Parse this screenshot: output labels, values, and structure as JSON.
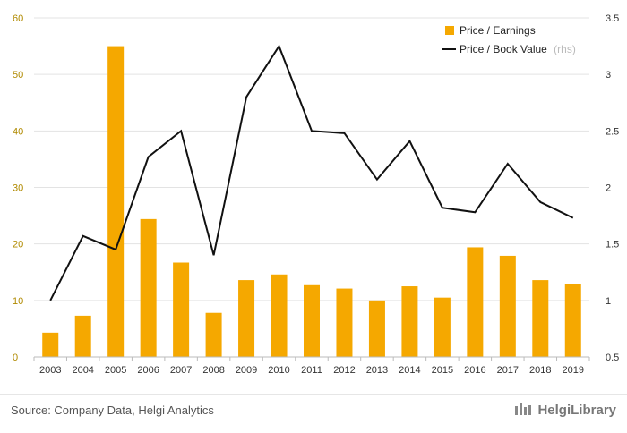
{
  "chart_data": {
    "type": "bar+line",
    "categories": [
      "2003",
      "2004",
      "2005",
      "2006",
      "2007",
      "2008",
      "2009",
      "2010",
      "2011",
      "2012",
      "2013",
      "2014",
      "2015",
      "2016",
      "2017",
      "2018",
      "2019"
    ],
    "series": [
      {
        "name": "Price / Earnings",
        "type": "bar",
        "axis": "left",
        "color": "#f5a800",
        "values": [
          4.3,
          7.3,
          55.0,
          24.4,
          16.7,
          7.8,
          13.6,
          14.6,
          12.7,
          12.1,
          10.0,
          12.5,
          10.5,
          19.4,
          17.9,
          13.6,
          12.9
        ]
      },
      {
        "name": "Price / Book Value",
        "legend_suffix": "(rhs)",
        "type": "line",
        "axis": "right",
        "color": "#111111",
        "values": [
          1.0,
          1.57,
          1.45,
          2.27,
          2.5,
          1.4,
          2.8,
          3.25,
          2.5,
          2.48,
          2.07,
          2.41,
          1.82,
          1.78,
          2.21,
          1.87,
          1.73
        ]
      }
    ],
    "y_left": {
      "ticks": [
        "0",
        "10",
        "20",
        "30",
        "40",
        "50",
        "60"
      ],
      "ylim": [
        0,
        60
      ]
    },
    "y_right": {
      "ticks": [
        "0.5",
        "1",
        "1.5",
        "2",
        "2.5",
        "3",
        "3.5"
      ],
      "ylim": [
        0.5,
        3.5
      ]
    },
    "grid": true,
    "legend_position": "top-right"
  },
  "footer": {
    "source": "Source: Company Data, Helgi Analytics",
    "brand": "HelgiLibrary"
  },
  "colors": {
    "bar": "#f5a800",
    "line": "#111111",
    "grid": "#e3e3e3"
  }
}
